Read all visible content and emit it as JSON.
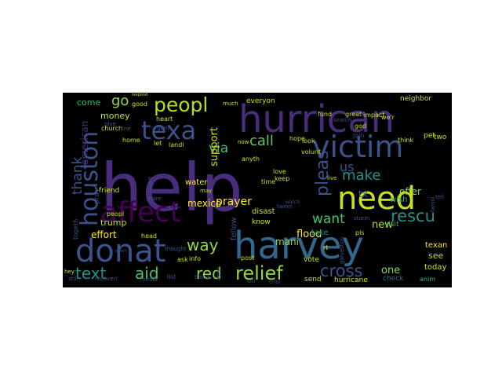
{
  "wordcloud": {
    "background": "#000000",
    "words": [
      {
        "text": "help",
        "color": "#472d7b"
      },
      {
        "text": "harvey",
        "color": "#31688e"
      },
      {
        "text": "hurrican",
        "color": "#472d7b"
      },
      {
        "text": "need",
        "color": "#c8e020"
      },
      {
        "text": "victim",
        "color": "#3b528b"
      },
      {
        "text": "donat",
        "color": "#3b528b"
      },
      {
        "text": "affect",
        "color": "#440154"
      },
      {
        "text": "texa",
        "color": "#3b528b"
      },
      {
        "text": "houston",
        "color": "#3b528b"
      },
      {
        "text": "peopl",
        "color": "#b5de2b"
      },
      {
        "text": "relief",
        "color": "#90d743"
      },
      {
        "text": "pleas",
        "color": "#3b528b"
      },
      {
        "text": "rescu",
        "color": "#21918c"
      },
      {
        "text": "text",
        "color": "#21918c"
      },
      {
        "text": "aid",
        "color": "#48c16e"
      },
      {
        "text": "red",
        "color": "#90d743"
      },
      {
        "text": "cross",
        "color": "#3b528b"
      },
      {
        "text": "way",
        "color": "#90d743"
      },
      {
        "text": "call",
        "color": "#5ec962"
      },
      {
        "text": "make",
        "color": "#21918c"
      },
      {
        "text": "want",
        "color": "#48c16e"
      },
      {
        "text": "thank",
        "color": "#3b528b"
      },
      {
        "text": "via",
        "color": "#48c16e"
      },
      {
        "text": "us",
        "color": "#3b528b"
      },
      {
        "text": "prayer",
        "color": "#fde725"
      },
      {
        "text": "go",
        "color": "#90d743"
      },
      {
        "text": "flood",
        "color": "#fde725"
      },
      {
        "text": "mexico",
        "color": "#fde725"
      },
      {
        "text": "effort",
        "color": "#fde725"
      },
      {
        "text": "one",
        "color": "#90d743"
      },
      {
        "text": "new",
        "color": "#b5de2b"
      },
      {
        "text": "support",
        "color": "#c8e020"
      },
      {
        "text": "trump",
        "color": "#c8e020"
      },
      {
        "text": "money",
        "color": "#c8e020"
      },
      {
        "text": "come",
        "color": "#35b779"
      },
      {
        "text": "american",
        "color": "#472d7b"
      },
      {
        "text": "offer",
        "color": "#90d743"
      },
      {
        "text": "see",
        "color": "#b5de2b"
      },
      {
        "text": "today",
        "color": "#c8e020"
      },
      {
        "text": "mani",
        "color": "#90d743"
      },
      {
        "text": "tx",
        "color": "#31688e"
      },
      {
        "text": "water",
        "color": "#fde725"
      },
      {
        "text": "fellow",
        "color": "#3b528b"
      },
      {
        "text": "know",
        "color": "#c8e020"
      },
      {
        "text": "disast",
        "color": "#c8e020"
      },
      {
        "text": "wish",
        "color": "#35b779"
      },
      {
        "text": "take",
        "color": "#21918c"
      },
      {
        "text": "texan",
        "color": "#fde725"
      },
      {
        "text": "visit",
        "color": "#35b779"
      },
      {
        "text": "vote",
        "color": "#c8e020"
      },
      {
        "text": "send",
        "color": "#c8e020"
      },
      {
        "text": "hurricane",
        "color": "#c8e020"
      },
      {
        "text": "check",
        "color": "#31688e"
      },
      {
        "text": "anim",
        "color": "#35b779"
      },
      {
        "text": "pet",
        "color": "#c8e020"
      },
      {
        "text": "two",
        "color": "#c8e020"
      },
      {
        "text": "friend",
        "color": "#c8e020"
      },
      {
        "text": "pray",
        "color": "#3b528b"
      },
      {
        "text": "peopl",
        "color": "#c8e020"
      },
      {
        "text": "togeth",
        "color": "#3b528b"
      },
      {
        "text": "head",
        "color": "#c8e020"
      },
      {
        "text": "info",
        "color": "#c8e020"
      },
      {
        "text": "ask",
        "color": "#c8e020"
      },
      {
        "text": "list",
        "color": "#3b528b"
      },
      {
        "text": "blood",
        "color": "#3b528b"
      },
      {
        "text": "media",
        "color": "#3b528b"
      },
      {
        "text": "hey",
        "color": "#c8e020"
      },
      {
        "text": "still",
        "color": "#3b528b"
      },
      {
        "text": "recoveri",
        "color": "#3b528b"
      },
      {
        "text": "everyon",
        "color": "#c8e020"
      },
      {
        "text": "fund",
        "color": "#c8e020"
      },
      {
        "text": "great",
        "color": "#c8e020"
      },
      {
        "text": "impact",
        "color": "#c8e020"
      },
      {
        "text": "neighbor",
        "color": "#c8e020"
      },
      {
        "text": "heart",
        "color": "#c8e020"
      },
      {
        "text": "good",
        "color": "#c8e020"
      },
      {
        "text": "we'r",
        "color": "#c8e020"
      },
      {
        "text": "god",
        "color": "#c8e020"
      },
      {
        "text": "join",
        "color": "#3b528b"
      },
      {
        "text": "think",
        "color": "#c8e020"
      },
      {
        "text": "look",
        "color": "#c8e020"
      },
      {
        "text": "hope",
        "color": "#c8e020"
      },
      {
        "text": "volunt",
        "color": "#c8e020"
      },
      {
        "text": "let",
        "color": "#c8e020"
      },
      {
        "text": "landi",
        "color": "#c8e020"
      },
      {
        "text": "home",
        "color": "#c8e020"
      },
      {
        "text": "church",
        "color": "#c8e020"
      },
      {
        "text": "give",
        "color": "#3b528b"
      },
      {
        "text": "urgent",
        "color": "#3b528b"
      },
      {
        "text": "line",
        "color": "#3b528b"
      },
      {
        "text": "anyth",
        "color": "#c8e020"
      },
      {
        "text": "love",
        "color": "#c8e020"
      },
      {
        "text": "keep",
        "color": "#c8e020"
      },
      {
        "text": "time",
        "color": "#c8e020"
      },
      {
        "text": "share",
        "color": "#3b528b"
      },
      {
        "text": "charit",
        "color": "#3b528b"
      },
      {
        "text": "area",
        "color": "#3b528b"
      },
      {
        "text": "may",
        "color": "#c8e020"
      },
      {
        "text": "post",
        "color": "#c8e020"
      },
      {
        "text": "open",
        "color": "#3b528b"
      },
      {
        "text": "citi",
        "color": "#3b528b"
      },
      {
        "text": "crisi",
        "color": "#3b528b"
      },
      {
        "text": "tweet",
        "color": "#3b528b"
      },
      {
        "text": "live",
        "color": "#c8e020"
      },
      {
        "text": "pls",
        "color": "#c8e020"
      },
      {
        "text": "rt",
        "color": "#c8e020"
      },
      {
        "text": "storm",
        "color": "#3b528b"
      },
      {
        "text": "galveston",
        "color": "#3b528b"
      },
      {
        "text": "tell",
        "color": "#3b528b"
      },
      {
        "text": "famili",
        "color": "#3b528b"
      },
      {
        "text": "search",
        "color": "#3b528b"
      },
      {
        "text": "thought",
        "color": "#3b528b"
      },
      {
        "text": "much",
        "color": "#c8e020"
      },
      {
        "text": "now",
        "color": "#c8e020"
      },
      {
        "text": "watch",
        "color": "#3b528b"
      },
      {
        "text": "respond",
        "color": "#c8e020"
      },
      {
        "text": "effect",
        "color": "#3b528b"
      }
    ]
  }
}
